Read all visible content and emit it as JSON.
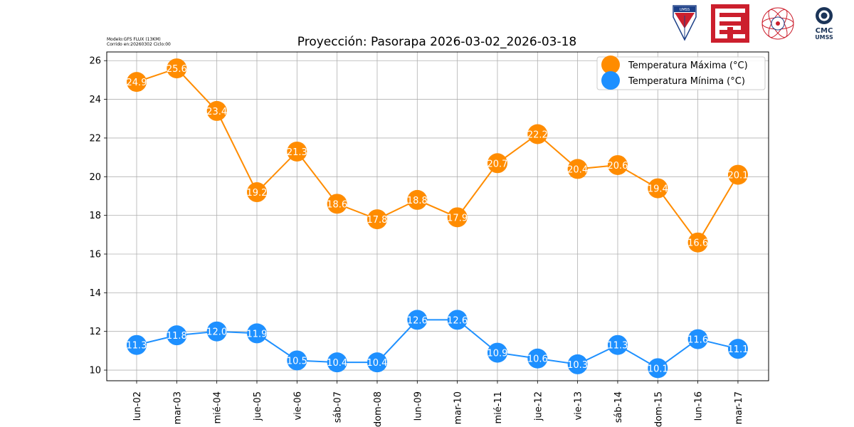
{
  "meta": {
    "model": "Modelo:GFS FLUX (13KM)",
    "run": "Corrido en:20260302 Ciclo:00"
  },
  "logos": {
    "umss_badge_text": "UMSS",
    "cmc_text": "CMC",
    "cmc_sub": "UMSS"
  },
  "colors": {
    "max": "#ff8c00",
    "min": "#1e90ff",
    "grid": "#b0b0b0",
    "umss_red": "#cc1f2d",
    "umss_blue": "#1c3f87",
    "cmc_navy": "#1b3458"
  },
  "chart_data": {
    "type": "line",
    "title": "Proyección: Pasorapa 2026-03-02_2026-03-18",
    "xlabel": "",
    "ylabel": "",
    "categories": [
      "lun-02",
      "mar-03",
      "mié-04",
      "jue-05",
      "vie-06",
      "sáb-07",
      "dom-08",
      "lun-09",
      "mar-10",
      "mié-11",
      "jue-12",
      "vie-13",
      "sáb-14",
      "dom-15",
      "lun-16",
      "mar-17"
    ],
    "series": [
      {
        "name": "Temperatura Máxima  (°C)",
        "values": [
          24.9,
          25.6,
          23.4,
          19.2,
          21.3,
          18.6,
          17.8,
          18.8,
          17.9,
          20.7,
          22.2,
          20.4,
          20.6,
          19.4,
          16.6,
          20.1
        ]
      },
      {
        "name": "Temperatura Mínima  (°C)",
        "values": [
          11.3,
          11.8,
          12.0,
          11.9,
          10.5,
          10.4,
          10.4,
          12.6,
          12.6,
          10.9,
          10.6,
          10.3,
          11.3,
          10.1,
          11.6,
          11.1
        ]
      }
    ],
    "ylim": [
      9.45,
      26.45
    ],
    "yticks": [
      10,
      12,
      14,
      16,
      18,
      20,
      22,
      24,
      26
    ],
    "grid": true,
    "legend": "top-right"
  }
}
